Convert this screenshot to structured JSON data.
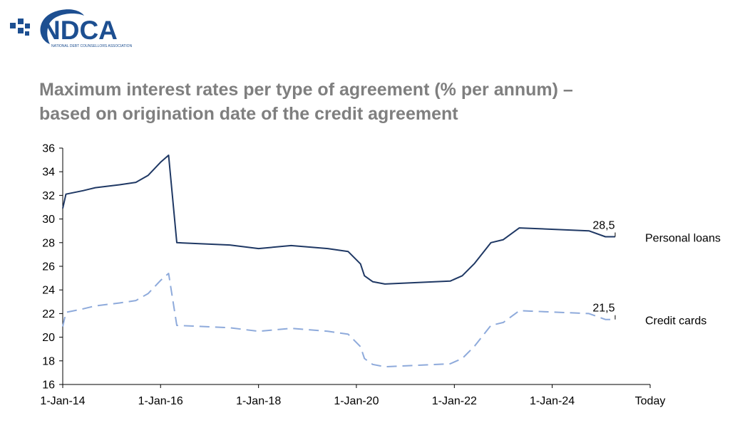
{
  "logo": {
    "text": "NDCA",
    "subtext": "NATIONAL DEBT COUNSELLORS ASSOCIATION",
    "brand_color": "#1d4f91"
  },
  "chart_data": {
    "type": "line",
    "title_lines": [
      "Maximum interest rates per type of agreement (% per annum) –",
      "based on origination date of the credit agreement"
    ],
    "title_color": "#7f7f7f",
    "xlabel": "",
    "ylabel": "",
    "ylim": [
      16,
      36
    ],
    "y_ticks": [
      16,
      18,
      20,
      22,
      24,
      26,
      28,
      30,
      32,
      34,
      36
    ],
    "x_range": [
      "2014-01-01",
      "2026-01-01"
    ],
    "x_tick_labels": [
      "1-Jan-14",
      "1-Jan-16",
      "1-Jan-18",
      "1-Jan-20",
      "1-Jan-22",
      "1-Jan-24",
      "Today"
    ],
    "x_ticks": [
      "2014-01-01",
      "2016-01-01",
      "2018-01-01",
      "2020-01-01",
      "2022-01-01",
      "2024-01-01",
      "2026-01-01"
    ],
    "grid": false,
    "legend": "inline-right",
    "series": [
      {
        "name": "Personal loans",
        "color": "#1f3864",
        "dash": "solid",
        "end_label": "28,5",
        "points": [
          [
            "2014-01-01",
            30.9
          ],
          [
            "2014-01-25",
            32.1
          ],
          [
            "2014-06-01",
            32.4
          ],
          [
            "2014-09-01",
            32.65
          ],
          [
            "2015-03-01",
            32.9
          ],
          [
            "2015-07-01",
            33.1
          ],
          [
            "2015-10-01",
            33.7
          ],
          [
            "2016-01-01",
            34.8
          ],
          [
            "2016-03-01",
            35.4
          ],
          [
            "2016-05-01",
            28.0
          ],
          [
            "2017-06-01",
            27.8
          ],
          [
            "2018-01-01",
            27.5
          ],
          [
            "2018-09-01",
            27.75
          ],
          [
            "2019-06-01",
            27.5
          ],
          [
            "2019-11-01",
            27.25
          ],
          [
            "2020-02-01",
            26.2
          ],
          [
            "2020-03-01",
            25.2
          ],
          [
            "2020-05-01",
            24.7
          ],
          [
            "2020-08-01",
            24.5
          ],
          [
            "2021-12-01",
            24.75
          ],
          [
            "2022-03-01",
            25.2
          ],
          [
            "2022-06-01",
            26.25
          ],
          [
            "2022-10-01",
            28.0
          ],
          [
            "2023-01-01",
            28.25
          ],
          [
            "2023-05-01",
            29.25
          ],
          [
            "2024-10-01",
            29.0
          ],
          [
            "2025-02-01",
            28.5
          ],
          [
            "2025-04-15",
            28.5
          ]
        ]
      },
      {
        "name": "Credit cards",
        "color": "#8eaadb",
        "dash": "dashed",
        "end_label": "21,5",
        "points": [
          [
            "2014-01-01",
            20.9
          ],
          [
            "2014-01-25",
            22.1
          ],
          [
            "2014-06-01",
            22.4
          ],
          [
            "2014-09-01",
            22.65
          ],
          [
            "2015-03-01",
            22.9
          ],
          [
            "2015-07-01",
            23.1
          ],
          [
            "2015-10-01",
            23.7
          ],
          [
            "2016-01-01",
            24.8
          ],
          [
            "2016-03-01",
            25.4
          ],
          [
            "2016-05-01",
            21.0
          ],
          [
            "2017-06-01",
            20.8
          ],
          [
            "2018-01-01",
            20.5
          ],
          [
            "2018-09-01",
            20.75
          ],
          [
            "2019-06-01",
            20.5
          ],
          [
            "2019-11-01",
            20.25
          ],
          [
            "2020-02-01",
            19.2
          ],
          [
            "2020-03-01",
            18.2
          ],
          [
            "2020-05-01",
            17.7
          ],
          [
            "2020-08-01",
            17.5
          ],
          [
            "2021-12-01",
            17.75
          ],
          [
            "2022-03-01",
            18.2
          ],
          [
            "2022-06-01",
            19.25
          ],
          [
            "2022-10-01",
            21.0
          ],
          [
            "2023-01-01",
            21.25
          ],
          [
            "2023-05-01",
            22.25
          ],
          [
            "2024-10-01",
            22.0
          ],
          [
            "2025-02-01",
            21.5
          ],
          [
            "2025-04-15",
            21.5
          ]
        ]
      }
    ]
  }
}
